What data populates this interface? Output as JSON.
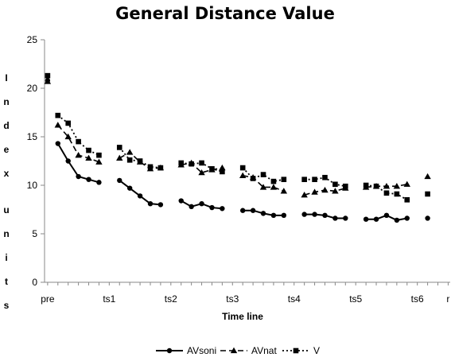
{
  "chart_data": {
    "type": "line",
    "title": "General Distance Value",
    "xlabel": "Time line",
    "ylabel": "I n d e x   u n i t s",
    "ylim": [
      0,
      25
    ],
    "yticks": [
      0,
      5,
      10,
      15,
      20,
      25
    ],
    "xlim": [
      0,
      39
    ],
    "categories": [
      "pre",
      "ts1",
      "ts2",
      "ts3",
      "ts4",
      "ts5",
      "ts6",
      "r"
    ],
    "category_positions": [
      0,
      6,
      12,
      18,
      24,
      30,
      36,
      39
    ],
    "grid": false,
    "legend_position": "bottom",
    "series": [
      {
        "name": "AVsoni",
        "dash": "solid",
        "marker": "circle",
        "segments": [
          [
            [
              0,
              20.8
            ]
          ],
          [
            [
              1,
              14.3
            ],
            [
              2,
              12.5
            ],
            [
              3,
              10.9
            ],
            [
              4,
              10.6
            ],
            [
              5,
              10.3
            ]
          ],
          [
            [
              7,
              10.5
            ],
            [
              8,
              9.7
            ],
            [
              9,
              8.9
            ],
            [
              10,
              8.1
            ],
            [
              11,
              8.0
            ]
          ],
          [
            [
              13,
              8.4
            ],
            [
              14,
              7.8
            ],
            [
              15,
              8.1
            ],
            [
              16,
              7.7
            ],
            [
              17,
              7.6
            ]
          ],
          [
            [
              19,
              7.4
            ],
            [
              20,
              7.4
            ],
            [
              21,
              7.1
            ],
            [
              22,
              6.9
            ],
            [
              23,
              6.9
            ]
          ],
          [
            [
              25,
              7.0
            ],
            [
              26,
              7.0
            ],
            [
              27,
              6.9
            ],
            [
              28,
              6.6
            ],
            [
              29,
              6.6
            ]
          ],
          [
            [
              31,
              6.5
            ],
            [
              32,
              6.5
            ],
            [
              33,
              6.9
            ],
            [
              34,
              6.4
            ],
            [
              35,
              6.6
            ]
          ],
          [
            [
              37,
              6.6
            ]
          ]
        ]
      },
      {
        "name": "AVnat",
        "dash": "dashed",
        "marker": "triangle",
        "segments": [
          [
            [
              0,
              20.7
            ]
          ],
          [
            [
              1,
              16.2
            ],
            [
              2,
              15.0
            ],
            [
              3,
              13.1
            ],
            [
              4,
              12.8
            ],
            [
              5,
              12.4
            ]
          ],
          [
            [
              7,
              12.8
            ],
            [
              8,
              13.4
            ],
            [
              9,
              12.4
            ],
            [
              10,
              11.7
            ],
            [
              11,
              11.8
            ]
          ],
          [
            [
              13,
              12.1
            ],
            [
              14,
              12.3
            ],
            [
              15,
              11.3
            ],
            [
              16,
              11.6
            ],
            [
              17,
              11.8
            ]
          ],
          [
            [
              19,
              11.0
            ],
            [
              20,
              10.8
            ],
            [
              21,
              9.8
            ],
            [
              22,
              9.8
            ],
            [
              23,
              9.4
            ]
          ],
          [
            [
              25,
              9.0
            ],
            [
              26,
              9.3
            ],
            [
              27,
              9.5
            ],
            [
              28,
              9.4
            ],
            [
              29,
              9.7
            ]
          ],
          [
            [
              31,
              9.8
            ],
            [
              32,
              9.9
            ],
            [
              33,
              9.9
            ],
            [
              34,
              9.9
            ],
            [
              35,
              10.1
            ]
          ],
          [
            [
              37,
              10.9
            ]
          ]
        ]
      },
      {
        "name": "V",
        "dash": "dotted",
        "marker": "square",
        "segments": [
          [
            [
              0,
              21.3
            ]
          ],
          [
            [
              1,
              17.2
            ],
            [
              2,
              16.4
            ],
            [
              3,
              14.5
            ],
            [
              4,
              13.6
            ],
            [
              5,
              13.1
            ]
          ],
          [
            [
              7,
              13.9
            ],
            [
              8,
              12.6
            ],
            [
              9,
              12.5
            ],
            [
              10,
              11.9
            ],
            [
              11,
              11.8
            ]
          ],
          [
            [
              13,
              12.3
            ],
            [
              14,
              12.2
            ],
            [
              15,
              12.3
            ],
            [
              16,
              11.7
            ],
            [
              17,
              11.4
            ]
          ],
          [
            [
              19,
              11.8
            ],
            [
              20,
              10.7
            ],
            [
              21,
              11.1
            ],
            [
              22,
              10.4
            ],
            [
              23,
              10.6
            ]
          ],
          [
            [
              25,
              10.6
            ],
            [
              26,
              10.6
            ],
            [
              27,
              10.8
            ],
            [
              28,
              10.1
            ],
            [
              29,
              9.9
            ]
          ],
          [
            [
              31,
              10.0
            ],
            [
              32,
              9.9
            ],
            [
              33,
              9.2
            ],
            [
              34,
              9.1
            ],
            [
              35,
              8.5
            ]
          ],
          [
            [
              37,
              9.1
            ]
          ]
        ]
      }
    ]
  }
}
